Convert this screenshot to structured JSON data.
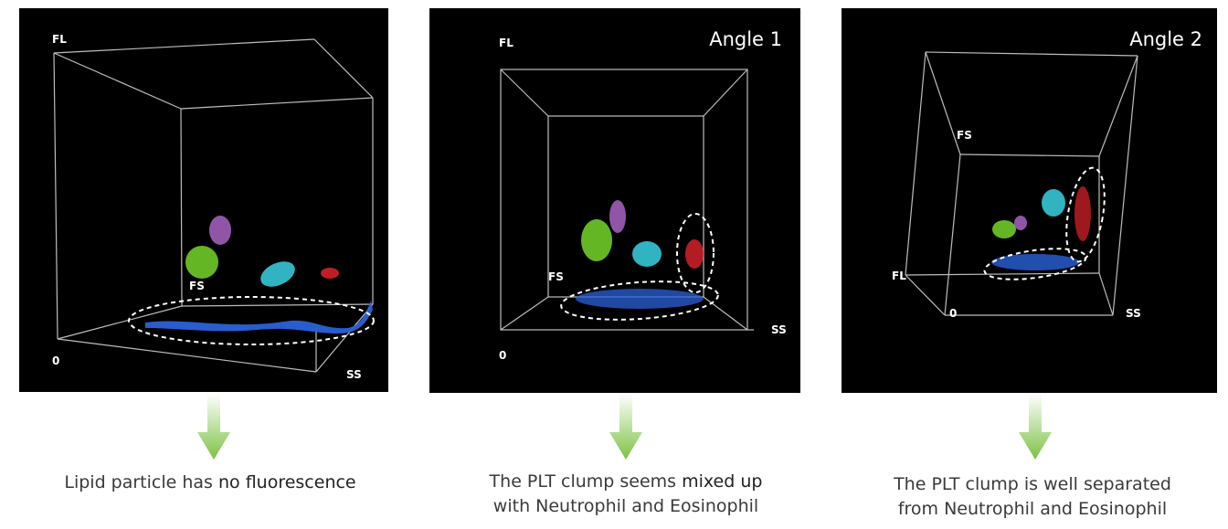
{
  "panels": [
    {
      "axes": {
        "fl": "FL",
        "fs": "FS",
        "ss": "SS",
        "origin": "0"
      },
      "title": "",
      "caption": {
        "before": "Lipid particle has ",
        "strong": "no fluorescence",
        "after": "",
        "line2": ""
      },
      "colors": {
        "green": "#77d62c",
        "purple": "#b46ad0",
        "cyan": "#39d2e3",
        "red": "#e0232a",
        "blue": "#2a62d8"
      }
    },
    {
      "axes": {
        "fl": "FL",
        "fs": "FS",
        "ss": "SS",
        "origin": "0"
      },
      "title": "Angle 1",
      "caption": {
        "before": "The PLT clump seems ",
        "strong": "mixed up",
        "after": "",
        "line2": "with Neutrophil and Eosinophil"
      }
    },
    {
      "axes": {
        "fl": "FL",
        "fs": "FS",
        "ss": "SS",
        "origin": "0"
      },
      "title": "Angle 2",
      "caption": {
        "before": "The PLT clump is well separated",
        "strong": "",
        "after": "",
        "line2": "from Neutrophil and Eosinophil"
      }
    }
  ],
  "arrow_color": "#7cc242"
}
